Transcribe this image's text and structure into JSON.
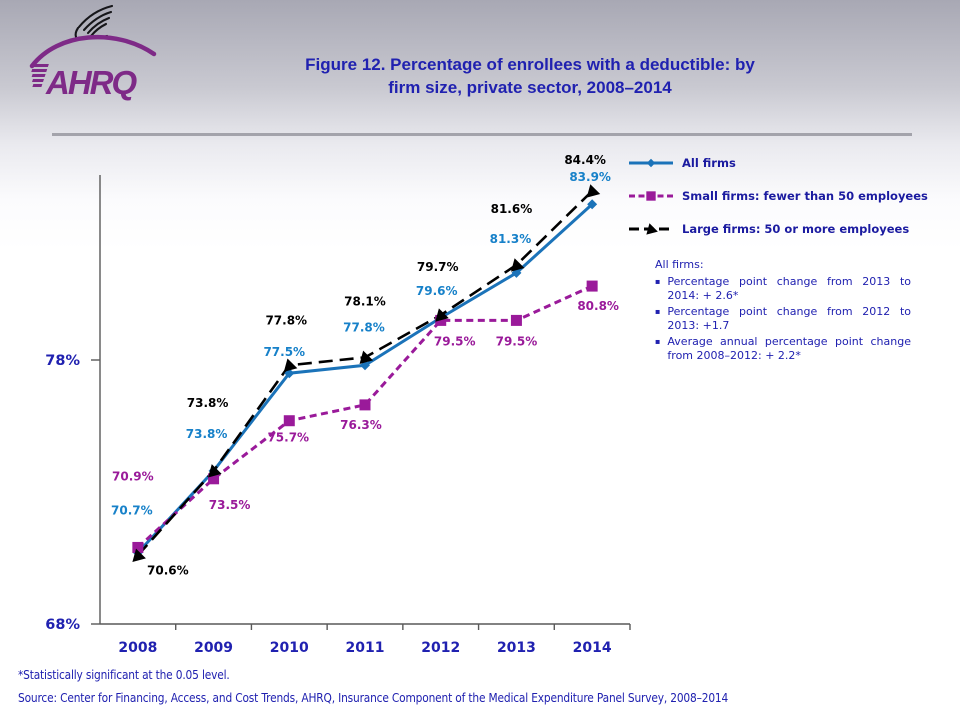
{
  "header": {
    "logo_text": "AHRQ",
    "title_line1": "Figure 12. Percentage of enrollees with a deductible: by",
    "title_line2": "firm size, private sector, 2008–2014"
  },
  "chart_data": {
    "type": "line",
    "title": "Percentage of enrollees with a deductible by firm size, private sector, 2008-2014",
    "categories": [
      "2008",
      "2009",
      "2010",
      "2011",
      "2012",
      "2013",
      "2014"
    ],
    "series": [
      {
        "name": "All firms",
        "color": "#1b73b9",
        "label_color": "#1781c9",
        "marker": "diamond",
        "dash": "solid",
        "values": [
          70.7,
          73.8,
          77.5,
          77.8,
          79.6,
          81.3,
          83.9
        ]
      },
      {
        "name": "Small firms: fewer than 50 employees",
        "color": "#9a1a9a",
        "label_color": "#9a1a9a",
        "marker": "square",
        "dash": "dashed",
        "values": [
          70.9,
          73.5,
          75.7,
          76.3,
          79.5,
          79.5,
          80.8
        ]
      },
      {
        "name": "Large firms: 50 or more employees",
        "color": "#000000",
        "label_color": "#000000",
        "marker": "triangle",
        "dash": "long-dash",
        "values": [
          70.6,
          73.8,
          77.8,
          78.1,
          79.7,
          81.6,
          84.4
        ]
      }
    ],
    "ylim": [
      68,
      85
    ],
    "yticks": [
      {
        "value": 78,
        "label": "78%"
      },
      {
        "value": 68,
        "label": "68%"
      }
    ],
    "grid": false,
    "legend_position": "top-right",
    "label_format": "percent-one-decimal"
  },
  "note": {
    "heading": "All firms:",
    "bullets": [
      "Percentage point change from 2013 to 2014:  + 2.6*",
      "Percentage point change from 2012 to 2013:   +1.7",
      "Average annual percentage point change from 2008–2012:  + 2.2*"
    ]
  },
  "footer": {
    "significance": "*Statistically significant at the 0.05 level.",
    "source": "Source: Center for Financing, Access, and Cost Trends, AHRQ, Insurance Component of the Medical Expenditure Panel Survey,  2008–2014"
  },
  "colors": {
    "title_text": "#2021b0",
    "axis": "#595959",
    "header_gradient_top": "#a8a8b4",
    "logo_purple": "#7e2a87"
  }
}
